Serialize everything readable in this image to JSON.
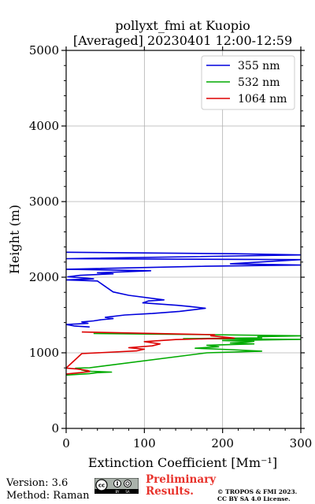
{
  "chart_data": {
    "type": "line",
    "title": "pollyxt_fmi at Kuopio",
    "subtitle": "[Averaged] 20230401 12:00-12:59",
    "xlabel": "Extinction Coefficient [Mm⁻¹]",
    "ylabel": "Height (m)",
    "xlim": [
      0,
      300
    ],
    "ylim": [
      0,
      5000
    ],
    "xticks": [
      0,
      100,
      200,
      300
    ],
    "xtick_labels": [
      "0",
      "100",
      "200",
      "300"
    ],
    "yticks": [
      0,
      1000,
      2000,
      3000,
      4000,
      5000
    ],
    "ytick_labels": [
      "0",
      "1000",
      "2000",
      "3000",
      "4000",
      "5000"
    ],
    "grid": true,
    "legend_position": "top-right",
    "series": [
      {
        "name": "355 nm",
        "color": "#0000dd",
        "x": [
          30,
          10,
          0,
          15,
          28,
          20,
          35,
          45,
          60,
          50,
          75,
          110,
          145,
          165,
          178,
          158,
          142,
          98,
          105,
          125,
          80,
          60,
          40,
          0,
          35,
          25,
          2,
          18,
          60,
          40,
          108,
          0,
          178,
          300,
          210,
          300,
          0,
          300,
          215,
          0
        ],
        "y": [
          1342,
          1355,
          1375,
          1382,
          1390,
          1408,
          1422,
          1438,
          1452,
          1470,
          1500,
          1520,
          1548,
          1572,
          1590,
          1612,
          1628,
          1660,
          1685,
          1700,
          1760,
          1805,
          1950,
          1965,
          1978,
          1988,
          2005,
          2025,
          2045,
          2058,
          2085,
          2105,
          2145,
          2160,
          2178,
          2232,
          2245,
          2295,
          2310,
          2330
        ]
      },
      {
        "name": "532 nm",
        "color": "#00aa00",
        "x": [
          0,
          30,
          40,
          58,
          32,
          24,
          20,
          18,
          12,
          30,
          180,
          250,
          210,
          165,
          195,
          180,
          240,
          210,
          230,
          240,
          200,
          300,
          150,
          250,
          245,
          300,
          185,
          35
        ],
        "y": [
          705,
          725,
          738,
          745,
          755,
          765,
          772,
          788,
          796,
          802,
          1000,
          1022,
          1042,
          1060,
          1080,
          1100,
          1118,
          1130,
          1142,
          1152,
          1162,
          1178,
          1188,
          1198,
          1212,
          1225,
          1240,
          1255
        ]
      },
      {
        "name": "1064 nm",
        "color": "#dd0000",
        "x": [
          0,
          18,
          30,
          28,
          14,
          0,
          20,
          90,
          100,
          80,
          110,
          120,
          100,
          140,
          215,
          200,
          185,
          190,
          20
        ],
        "y": [
          720,
          738,
          752,
          766,
          785,
          798,
          990,
          1025,
          1048,
          1068,
          1092,
          1118,
          1148,
          1175,
          1195,
          1210,
          1225,
          1240,
          1275
        ]
      }
    ]
  },
  "footer": {
    "version": "Version: 3.6",
    "method": "Method: Raman",
    "preliminary_line1": "Preliminary",
    "preliminary_line2": "Results.",
    "copyright_line1": "© TROPOS & FMI 2023.",
    "copyright_line2": "CC BY SA 4.0 License.",
    "license_logo": "cc-by-sa-icon"
  }
}
